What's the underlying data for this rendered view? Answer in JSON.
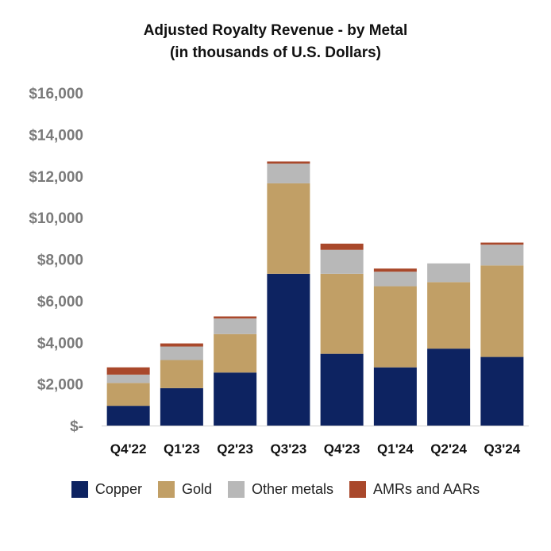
{
  "chart_data": {
    "type": "bar",
    "stacked": true,
    "title": "Adjusted Royalty Revenue - by Metal",
    "subtitle": "(in thousands of U.S. Dollars)",
    "xlabel": "",
    "ylabel": "",
    "ylim": [
      0,
      16000
    ],
    "y_ticks": [
      0,
      2000,
      4000,
      6000,
      8000,
      10000,
      12000,
      14000,
      16000
    ],
    "y_tick_labels": [
      "$-",
      "$2,000",
      "$4,000",
      "$6,000",
      "$8,000",
      "$10,000",
      "$12,000",
      "$14,000",
      "$16,000"
    ],
    "grid": false,
    "legend_position": "bottom",
    "categories": [
      "Q4'22",
      "Q1'23",
      "Q2'23",
      "Q3'23",
      "Q4'23",
      "Q1'24",
      "Q2'24",
      "Q3'24"
    ],
    "series": [
      {
        "name": "Copper",
        "color": "#0d2361",
        "values": [
          950,
          1800,
          2550,
          7300,
          3450,
          2800,
          3700,
          3300
        ]
      },
      {
        "name": "Gold",
        "color": "#c19f66",
        "values": [
          1100,
          1350,
          1850,
          4350,
          3850,
          3900,
          3200,
          4400
        ]
      },
      {
        "name": "Other metals",
        "color": "#b8b8b8",
        "values": [
          400,
          650,
          750,
          950,
          1150,
          700,
          900,
          1000
        ]
      },
      {
        "name": "AMRs and AARs",
        "color": "#a9482b",
        "values": [
          350,
          150,
          100,
          100,
          300,
          150,
          0,
          100
        ]
      }
    ]
  }
}
